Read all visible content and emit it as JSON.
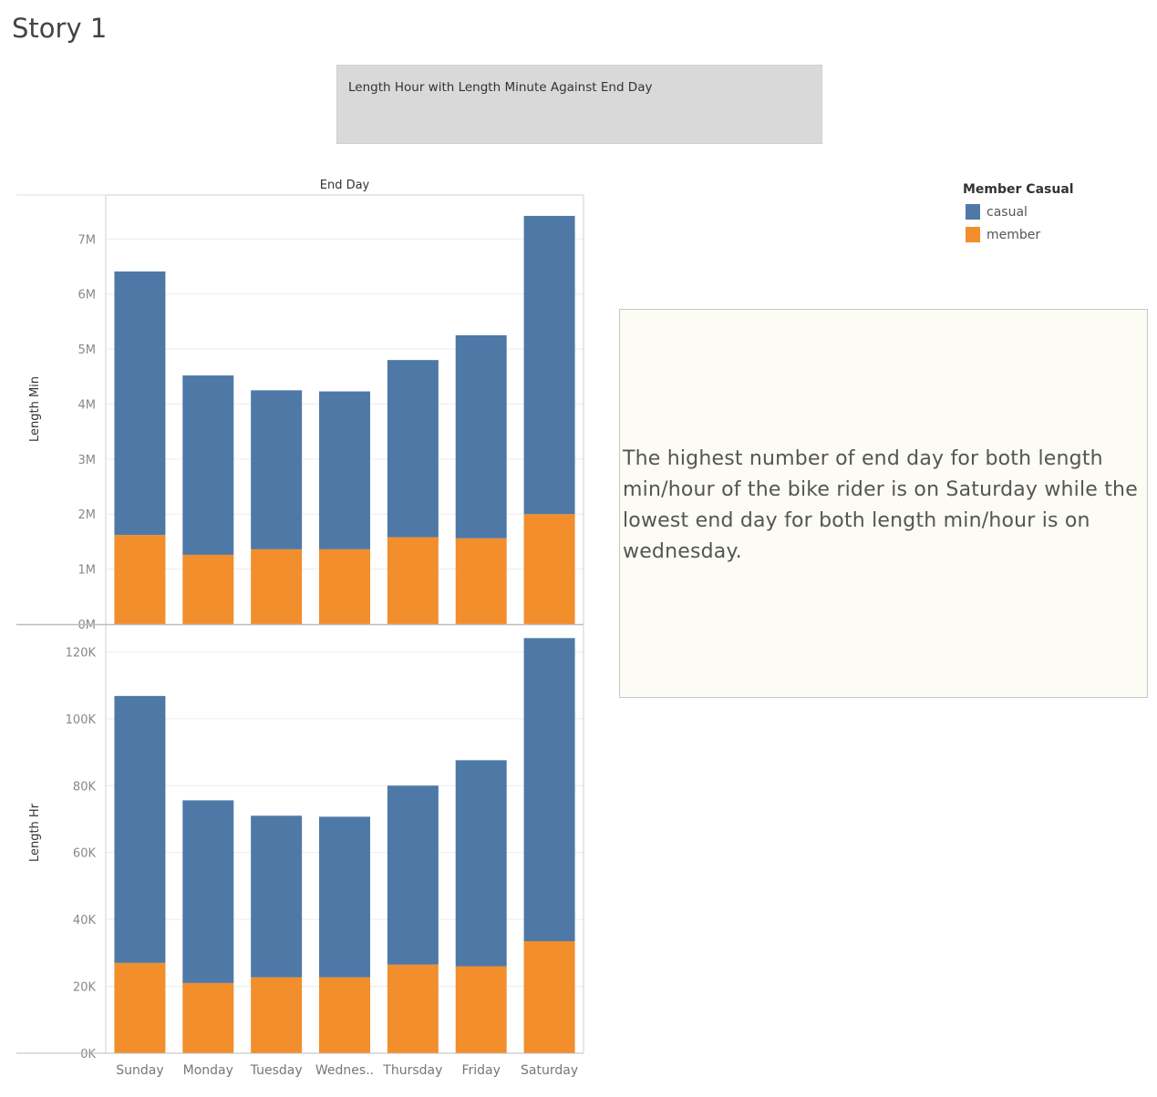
{
  "story": {
    "title": "Story 1"
  },
  "caption": {
    "text": "Length Hour with Length Minute Against End Day"
  },
  "legend": {
    "title": "Member Casual",
    "items": [
      {
        "label": "casual",
        "color": "#4e79a7"
      },
      {
        "label": "member",
        "color": "#f28e2b"
      }
    ]
  },
  "annotation": {
    "text": "The highest number of end day for both length min/hour of the bike rider is on  Saturday  while the lowest end day for both length min/hour is on wednesday."
  },
  "chart_data": {
    "type": "bar",
    "stacked": true,
    "column_header": "End Day",
    "categories": [
      "Sunday",
      "Monday",
      "Tuesday",
      "Wednes..",
      "Thursday",
      "Friday",
      "Saturday"
    ],
    "colors": {
      "casual": "#4e79a7",
      "member": "#f28e2b"
    },
    "grid": true,
    "legend_position": "top-right",
    "panels": [
      {
        "ylabel": "Length Min",
        "ylim": [
          0,
          7800000
        ],
        "yticks": [
          0,
          1000000,
          2000000,
          3000000,
          4000000,
          5000000,
          6000000,
          7000000
        ],
        "ytick_labels": [
          "0M",
          "1M",
          "2M",
          "3M",
          "4M",
          "5M",
          "6M",
          "7M"
        ],
        "series": [
          {
            "name": "member",
            "values": [
              1620000,
              1260000,
              1360000,
              1360000,
              1580000,
              1560000,
              2000000
            ]
          },
          {
            "name": "casual",
            "values": [
              4790000,
              3260000,
              2890000,
              2870000,
              3220000,
              3690000,
              5420000
            ]
          }
        ]
      },
      {
        "ylabel": "Length Hr",
        "ylim": [
          0,
          128000
        ],
        "yticks": [
          0,
          20000,
          40000,
          60000,
          80000,
          100000,
          120000
        ],
        "ytick_labels": [
          "0K",
          "20K",
          "40K",
          "60K",
          "80K",
          "100K",
          "120K"
        ],
        "series": [
          {
            "name": "member",
            "values": [
              27000,
              21000,
              22700,
              22700,
              26500,
              26000,
              33500
            ]
          },
          {
            "name": "casual",
            "values": [
              79800,
              54600,
              48300,
              48000,
              53500,
              61600,
              90600
            ]
          }
        ]
      }
    ]
  }
}
